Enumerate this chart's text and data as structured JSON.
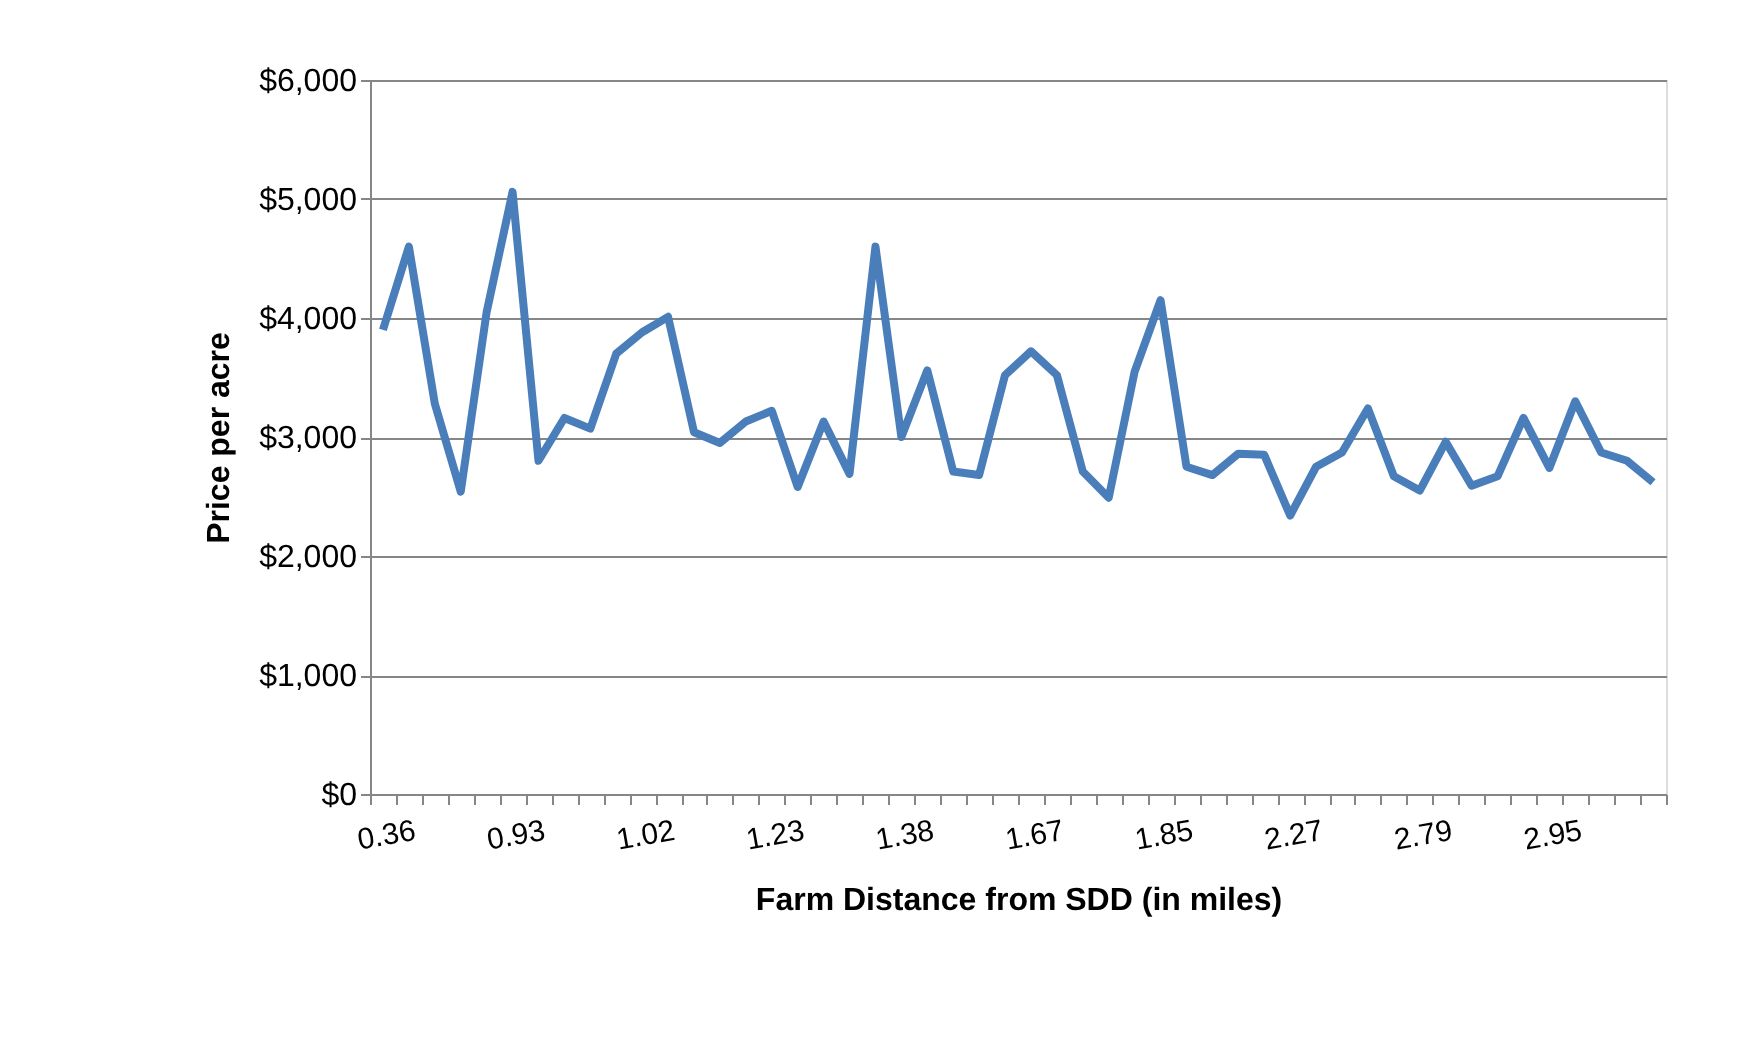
{
  "chart_data": {
    "type": "line",
    "xlabel": "Farm Distance from SDD (in miles)",
    "ylabel": "Price per acre",
    "categories": [
      "0.36",
      null,
      null,
      null,
      null,
      "0.93",
      null,
      null,
      null,
      null,
      "1.02",
      null,
      null,
      null,
      null,
      "1.23",
      null,
      null,
      null,
      null,
      "1.38",
      null,
      null,
      null,
      null,
      "1.67",
      null,
      null,
      null,
      null,
      "1.85",
      null,
      null,
      null,
      null,
      "2.27",
      null,
      null,
      null,
      null,
      "2.79",
      null,
      null,
      null,
      null,
      "2.95",
      null,
      null,
      null,
      null
    ],
    "series": [
      {
        "color": "#4a7ebb",
        "values": [
          3900,
          4600,
          3280,
          2540,
          4050,
          5060,
          2800,
          3160,
          3070,
          3700,
          3880,
          4010,
          3040,
          2950,
          3130,
          3220,
          2580,
          3130,
          2690,
          4600,
          3000,
          3560,
          2710,
          2680,
          3520,
          3720,
          3520,
          2710,
          2490,
          3550,
          4150,
          2750,
          2680,
          2860,
          2850,
          2340,
          2750,
          2870,
          3240,
          2670,
          2550,
          2960,
          2590,
          2670,
          3160,
          2740,
          3300,
          2870,
          2800,
          2620
        ]
      }
    ],
    "ylim": [
      0,
      6000
    ],
    "yticks": [
      {
        "value": 0,
        "label": "$0"
      },
      {
        "value": 1000,
        "label": "$1,000"
      },
      {
        "value": 2000,
        "label": "$2,000"
      },
      {
        "value": 3000,
        "label": "$3,000"
      },
      {
        "value": 4000,
        "label": "$4,000"
      },
      {
        "value": 5000,
        "label": "$5,000"
      },
      {
        "value": 6000,
        "label": "$6,000"
      }
    ],
    "grid": "y",
    "marker": "none",
    "line_style": "solid"
  }
}
